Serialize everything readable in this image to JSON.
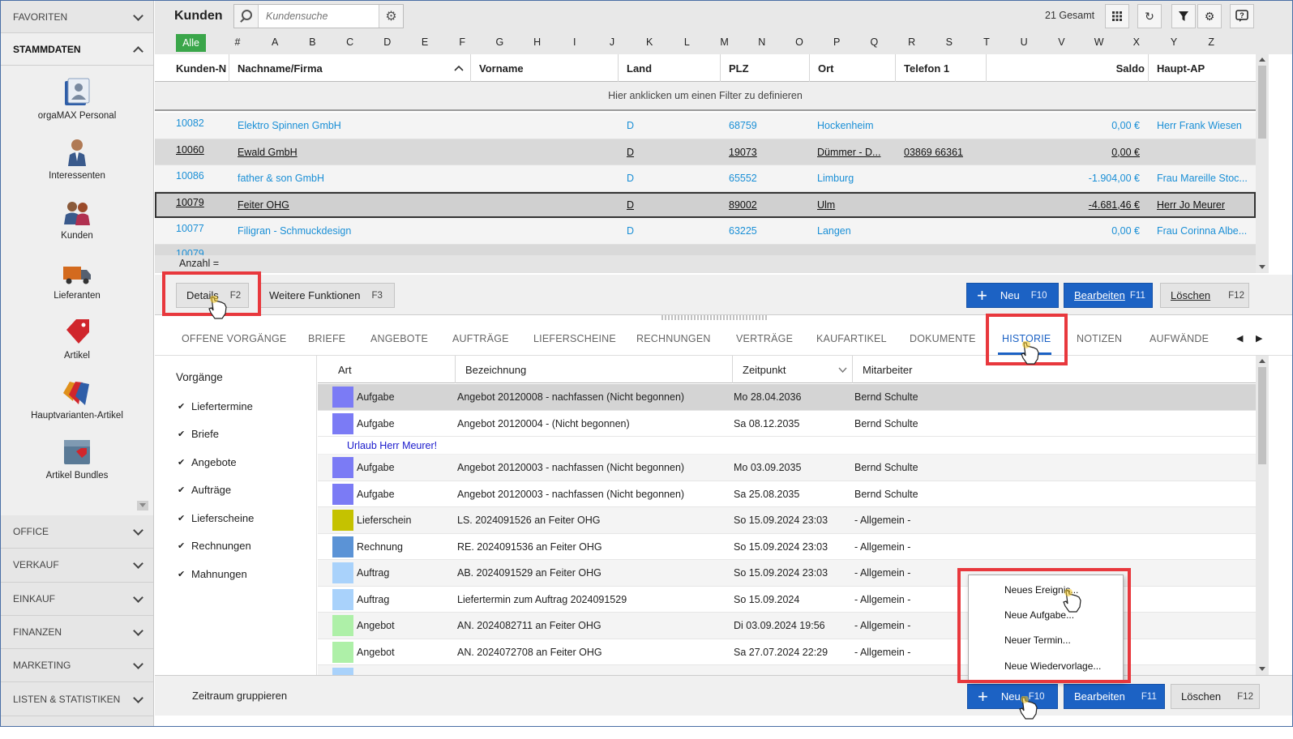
{
  "sidebar": {
    "favoriten": "FAVORITEN",
    "stammdaten": "STAMMDATEN",
    "items": [
      {
        "label": "orgaMAX Personal"
      },
      {
        "label": "Interessenten"
      },
      {
        "label": "Kunden"
      },
      {
        "label": "Lieferanten"
      },
      {
        "label": "Artikel"
      },
      {
        "label": "Hauptvarianten-Artikel"
      },
      {
        "label": "Artikel Bundles"
      }
    ],
    "sections": [
      "OFFICE",
      "VERKAUF",
      "EINKAUF",
      "FINANZEN",
      "MARKETING",
      "LISTEN & STATISTIKEN"
    ]
  },
  "header": {
    "title": "Kunden",
    "search_placeholder": "Kundensuche",
    "total": "21 Gesamt"
  },
  "alphabet": {
    "all": "Alle",
    "letters": [
      "#",
      "A",
      "B",
      "C",
      "D",
      "E",
      "F",
      "G",
      "H",
      "I",
      "J",
      "K",
      "L",
      "M",
      "N",
      "O",
      "P",
      "Q",
      "R",
      "S",
      "T",
      "U",
      "V",
      "W",
      "X",
      "Y",
      "Z"
    ]
  },
  "grid": {
    "columns": [
      "Kunden-N",
      "Nachname/Firma",
      "Vorname",
      "Land",
      "PLZ",
      "Ort",
      "Telefon 1",
      "Saldo",
      "Haupt-AP"
    ],
    "filter_hint": "Hier anklicken um einen Filter zu definieren",
    "rows": [
      {
        "nr": "10082",
        "name": "Elektro Spinnen GmbH",
        "vorname": "",
        "land": "D",
        "plz": "68759",
        "ort": "Hockenheim",
        "tel": "",
        "saldo": "0,00 €",
        "ap": "Herr Frank Wiesen"
      },
      {
        "nr": "10060",
        "name": "Ewald GmbH",
        "vorname": "",
        "land": "D",
        "plz": "19073",
        "ort": "Dümmer - D...",
        "tel": "03869 66361",
        "saldo": "0,00 €",
        "ap": ""
      },
      {
        "nr": "10086",
        "name": "father & son GmbH",
        "vorname": "",
        "land": "D",
        "plz": "65552",
        "ort": "Limburg",
        "tel": "",
        "saldo": "-1.904,00 €",
        "ap": "Frau Mareille Stoc..."
      },
      {
        "nr": "10079",
        "name": "Feiter OHG",
        "vorname": "",
        "land": "D",
        "plz": "89002",
        "ort": "Ulm",
        "tel": "",
        "saldo": "-4.681,46 €",
        "ap": "Herr Jo Meurer"
      },
      {
        "nr": "10077",
        "name": "Filigran - Schmuckdesign",
        "vorname": "",
        "land": "D",
        "plz": "63225",
        "ort": "Langen",
        "tel": "",
        "saldo": "0,00 €",
        "ap": "Frau Corinna Albe..."
      }
    ],
    "partial_row_nr": "10079",
    "anzahl": "Anzahl ="
  },
  "actions": {
    "details": "Details",
    "details_key": "F2",
    "weitere": "Weitere Funktionen",
    "weitere_key": "F3",
    "neu": "Neu",
    "neu_key": "F10",
    "bearbeiten": "Bearbeiten",
    "bearbeiten_key": "F11",
    "loeschen": "Löschen",
    "loeschen_key": "F12"
  },
  "tabs": [
    "OFFENE VORGÄNGE",
    "BRIEFE",
    "ANGEBOTE",
    "AUFTRÄGE",
    "LIEFERSCHEINE",
    "RECHNUNGEN",
    "VERTRÄGE",
    "KAUFARTIKEL",
    "DOKUMENTE",
    "HISTORIE",
    "NOTIZEN",
    "AUFWÄNDE"
  ],
  "vorgaenge": {
    "title": "Vorgänge",
    "items": [
      "Liefertermine",
      "Briefe",
      "Angebote",
      "Aufträge",
      "Lieferscheine",
      "Rechnungen",
      "Mahnungen"
    ]
  },
  "history": {
    "columns": [
      "Art",
      "Bezeichnung",
      "Zeitpunkt",
      "Mitarbeiter"
    ],
    "note": "Urlaub Herr Meurer!",
    "rows": [
      {
        "color": "#7b7bf5",
        "art": "Aufgabe",
        "bez": "Angebot 20120008 - nachfassen (Nicht begonnen)",
        "zeit": "Mo 28.04.2036",
        "mit": "Bernd Schulte"
      },
      {
        "color": "#7b7bf5",
        "art": "Aufgabe",
        "bez": "Angebot 20120004 -  (Nicht begonnen)",
        "zeit": "Sa 08.12.2035",
        "mit": "Bernd Schulte"
      },
      {
        "color": "#7b7bf5",
        "art": "Aufgabe",
        "bez": "Angebot 20120003 - nachfassen (Nicht begonnen)",
        "zeit": "Mo 03.09.2035",
        "mit": "Bernd Schulte"
      },
      {
        "color": "#7b7bf5",
        "art": "Aufgabe",
        "bez": "Angebot 20120003 - nachfassen (Nicht begonnen)",
        "zeit": "Sa 25.08.2035",
        "mit": "Bernd Schulte"
      },
      {
        "color": "#c5c200",
        "art": "Lieferschein",
        "bez": "LS. 2024091526 an Feiter OHG",
        "zeit": "So 15.09.2024 23:03",
        "mit": "- Allgemein -"
      },
      {
        "color": "#5b93d6",
        "art": "Rechnung",
        "bez": "RE. 2024091536 an Feiter OHG",
        "zeit": "So 15.09.2024 23:03",
        "mit": "- Allgemein -"
      },
      {
        "color": "#a9d2fb",
        "art": "Auftrag",
        "bez": "AB. 2024091529 an Feiter OHG",
        "zeit": "So 15.09.2024 23:03",
        "mit": "- Allgemein -"
      },
      {
        "color": "#a9d2fb",
        "art": "Auftrag",
        "bez": "Liefertermin zum Auftrag 2024091529",
        "zeit": "So 15.09.2024",
        "mit": "- Allgemein -"
      },
      {
        "color": "#aef0a8",
        "art": "Angebot",
        "bez": "AN. 2024082711 an Feiter OHG",
        "zeit": "Di 03.09.2024 19:56",
        "mit": "- Allgemein -"
      },
      {
        "color": "#aef0a8",
        "art": "Angebot",
        "bez": "AN. 2024072708 an Feiter OHG",
        "zeit": "Sa 27.07.2024 22:29",
        "mit": "- Allgemein -"
      }
    ]
  },
  "bottom": {
    "zeitraum": "Zeitraum gruppieren"
  },
  "popup": {
    "items": [
      "Neues Ereignis...",
      "Neue Aufgabe...",
      "Neuer Termin...",
      "Neue Wiedervorlage..."
    ]
  },
  "colors": {
    "primary": "#1c62c4",
    "alle_green": "#3aa64a",
    "link_blue": "#1a8fd6",
    "highlight_red": "#e8383d"
  }
}
